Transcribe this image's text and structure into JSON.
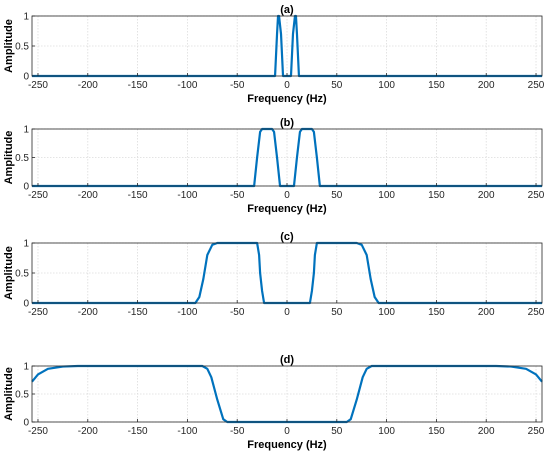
{
  "chart_data": [
    {
      "type": "line",
      "title": "(a)",
      "xlabel": "Frequency (Hz)",
      "ylabel": "Amplitude",
      "xlim": [
        -256,
        256
      ],
      "ylim": [
        0,
        1
      ],
      "grid": true,
      "xticks": [
        -250,
        -200,
        -150,
        -100,
        -50,
        0,
        50,
        100,
        150,
        200,
        250
      ],
      "yticks": [
        0,
        0.5,
        1
      ],
      "ytick_labels": [
        "0",
        "0.5",
        "1"
      ],
      "color": "#0072BD",
      "series": [
        {
          "x": [
            -256,
            -12,
            -10,
            -9,
            -8,
            -6,
            -4,
            4,
            6,
            8,
            9,
            10,
            12,
            256
          ],
          "y": [
            0,
            0,
            0.7,
            1,
            1,
            0.7,
            0,
            0,
            0.7,
            1,
            1,
            0.7,
            0,
            0
          ]
        }
      ]
    },
    {
      "type": "line",
      "title": "(b)",
      "xlabel": "Frequency (Hz)",
      "ylabel": "Amplitude",
      "xlim": [
        -256,
        256
      ],
      "ylim": [
        0,
        1
      ],
      "grid": true,
      "xticks": [
        -250,
        -200,
        -150,
        -100,
        -50,
        0,
        50,
        100,
        150,
        200,
        250
      ],
      "yticks": [
        0,
        0.5,
        1
      ],
      "ytick_labels": [
        "0",
        "0.5",
        "1"
      ],
      "color": "#0072BD",
      "series": [
        {
          "x": [
            -256,
            -33,
            -30,
            -27,
            -25,
            -15,
            -13,
            -10,
            -7,
            7,
            10,
            13,
            15,
            25,
            27,
            30,
            33,
            256
          ],
          "y": [
            0,
            0,
            0.5,
            0.95,
            1,
            1,
            0.95,
            0.5,
            0,
            0,
            0.5,
            0.95,
            1,
            1,
            0.95,
            0.5,
            0,
            0
          ]
        }
      ]
    },
    {
      "type": "line",
      "title": "(c)",
      "xlabel": "",
      "ylabel": "Amplitude",
      "xlim": [
        -256,
        256
      ],
      "ylim": [
        0,
        1
      ],
      "grid": true,
      "xticks": [
        -250,
        -200,
        -150,
        -100,
        -50,
        0,
        50,
        100,
        150,
        200,
        250
      ],
      "yticks": [
        0,
        0.5,
        1
      ],
      "ytick_labels": [
        "0",
        "0.5",
        "1"
      ],
      "color": "#0072BD",
      "series": [
        {
          "x": [
            -256,
            -92,
            -88,
            -84,
            -80,
            -75,
            -70,
            -30,
            -28,
            -27,
            -25,
            -23,
            23,
            25,
            27,
            28,
            30,
            70,
            75,
            80,
            84,
            88,
            92,
            256
          ],
          "y": [
            0,
            0,
            0.1,
            0.4,
            0.8,
            0.97,
            1,
            1,
            0.8,
            0.5,
            0.2,
            0,
            0,
            0.2,
            0.5,
            0.8,
            1,
            1,
            0.97,
            0.8,
            0.4,
            0.1,
            0,
            0
          ]
        }
      ]
    },
    {
      "type": "line",
      "title": "(d)",
      "xlabel": "Frequency (Hz)",
      "ylabel": "Amplitude",
      "xlim": [
        -256,
        256
      ],
      "ylim": [
        0,
        1
      ],
      "grid": true,
      "xticks": [
        -250,
        -200,
        -150,
        -100,
        -50,
        0,
        50,
        100,
        150,
        200,
        250
      ],
      "yticks": [
        0,
        0.5,
        1
      ],
      "ytick_labels": [
        "0",
        "0.5",
        "1"
      ],
      "color": "#0072BD",
      "series": [
        {
          "x": [
            -256,
            -250,
            -240,
            -225,
            -210,
            -200,
            -85,
            -80,
            -76,
            -70,
            -64,
            -60,
            60,
            64,
            70,
            76,
            80,
            85,
            200,
            210,
            225,
            240,
            250,
            256
          ],
          "y": [
            0.72,
            0.85,
            0.95,
            0.99,
            1,
            1,
            1,
            0.95,
            0.8,
            0.4,
            0.05,
            0,
            0,
            0.05,
            0.4,
            0.8,
            0.95,
            1,
            1,
            1,
            0.99,
            0.95,
            0.85,
            0.72
          ]
        }
      ]
    }
  ]
}
